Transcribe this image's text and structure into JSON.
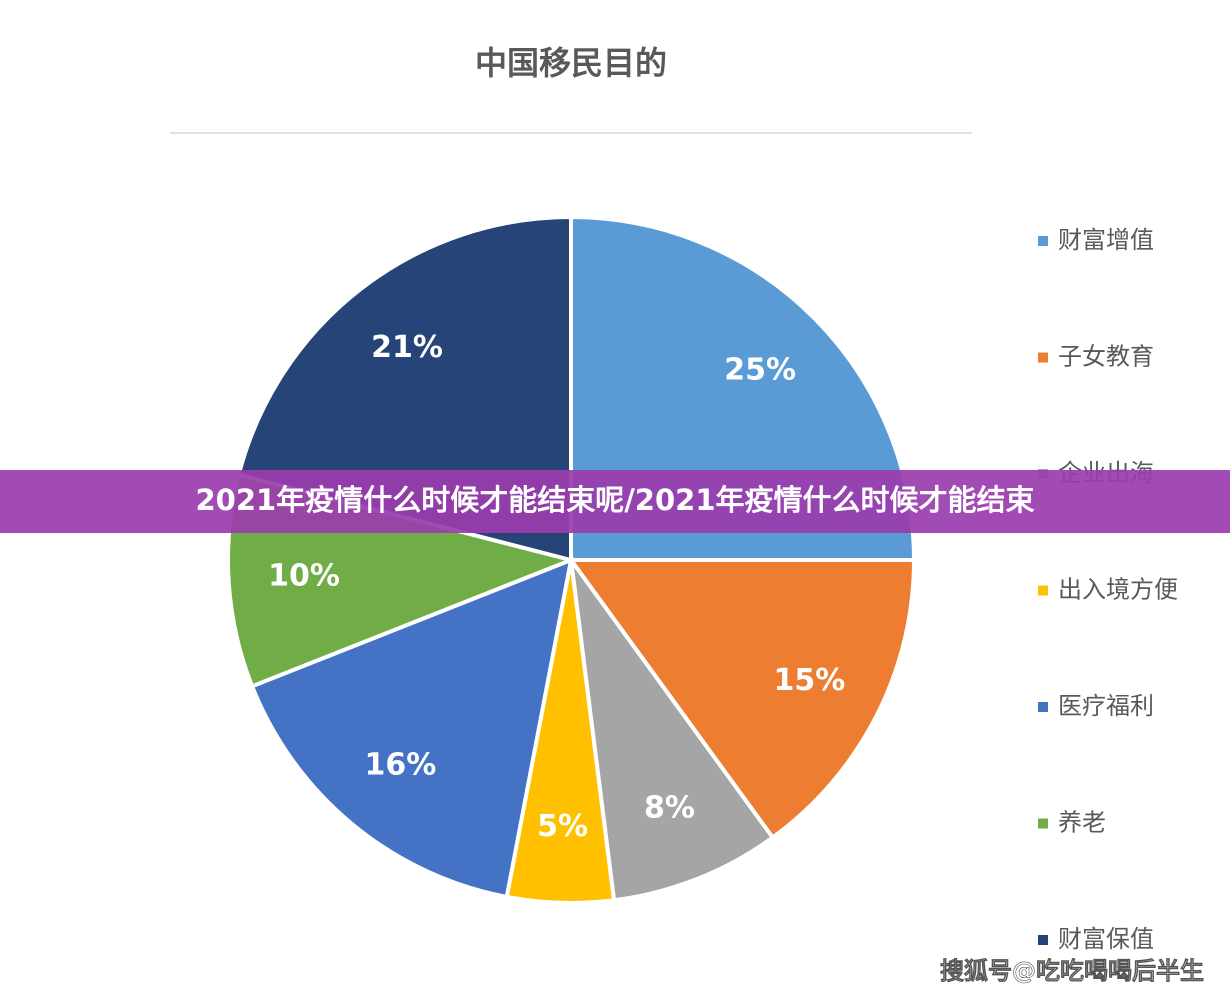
{
  "chart_data": {
    "type": "pie",
    "title": "中国移民目的",
    "categories": [
      "财富增值",
      "子女教育",
      "企业出海",
      "出入境方便",
      "医疗福利",
      "养老",
      "财富保值"
    ],
    "values": [
      25,
      15,
      8,
      5,
      16,
      10,
      21
    ],
    "value_labels": [
      "25%",
      "15%",
      "8%",
      "5%",
      "16%",
      "10%",
      "21%"
    ],
    "colors": [
      "#5b9bd5",
      "#ed7d31",
      "#a5a5a5",
      "#ffc000",
      "#4472c4",
      "#70ad47",
      "#264478"
    ],
    "legend": "right"
  },
  "banner": "2021年疫情什么时候才能结束呢/2021年疫情什么时候才能结束",
  "watermark": "搜狐号@吃吃喝喝后半生"
}
